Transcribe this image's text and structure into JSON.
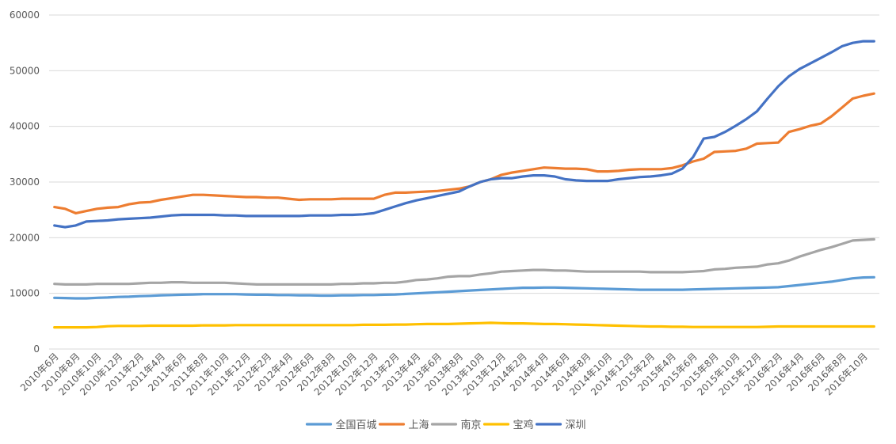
{
  "chart_data": {
    "type": "line",
    "title": "",
    "xlabel": "",
    "ylabel": "",
    "ylim": [
      0,
      60000
    ],
    "yticks": [
      0,
      10000,
      20000,
      30000,
      40000,
      50000,
      60000
    ],
    "grid": true,
    "legend_position": "bottom",
    "categories": [
      "2010年6月",
      "2010年7月",
      "2010年8月",
      "2010年9月",
      "2010年10月",
      "2010年11月",
      "2010年12月",
      "2011年1月",
      "2011年2月",
      "2011年3月",
      "2011年4月",
      "2011年5月",
      "2011年6月",
      "2011年7月",
      "2011年8月",
      "2011年9月",
      "2011年10月",
      "2011年11月",
      "2011年12月",
      "2012年1月",
      "2012年2月",
      "2012年3月",
      "2012年4月",
      "2012年5月",
      "2012年6月",
      "2012年7月",
      "2012年8月",
      "2012年9月",
      "2012年10月",
      "2012年11月",
      "2012年12月",
      "2013年1月",
      "2013年2月",
      "2013年3月",
      "2013年4月",
      "2013年5月",
      "2013年6月",
      "2013年7月",
      "2013年8月",
      "2013年9月",
      "2013年10月",
      "2013年11月",
      "2013年12月",
      "2014年1月",
      "2014年2月",
      "2014年3月",
      "2014年4月",
      "2014年5月",
      "2014年6月",
      "2014年7月",
      "2014年8月",
      "2014年9月",
      "2014年10月",
      "2014年11月",
      "2014年12月",
      "2015年1月",
      "2015年2月",
      "2015年3月",
      "2015年4月",
      "2015年5月",
      "2015年6月",
      "2015年7月",
      "2015年8月",
      "2015年9月",
      "2015年10月",
      "2015年11月",
      "2015年12月",
      "2016年1月",
      "2016年2月",
      "2016年3月",
      "2016年4月",
      "2016年5月",
      "2016年6月",
      "2016年7月",
      "2016年8月",
      "2016年9月",
      "2016年10月",
      "2016年11月"
    ],
    "tick_labels": [
      "2010年6月",
      "2010年8月",
      "2010年10月",
      "2010年12月",
      "2011年2月",
      "2011年4月",
      "2011年6月",
      "2011年8月",
      "2011年10月",
      "2011年12月",
      "2012年2月",
      "2012年4月",
      "2012年6月",
      "2012年8月",
      "2012年10月",
      "2012年12月",
      "2013年2月",
      "2013年4月",
      "2013年6月",
      "2013年8月",
      "2013年10月",
      "2013年12月",
      "2014年2月",
      "2014年4月",
      "2014年6月",
      "2014年8月",
      "2014年10月",
      "2014年12月",
      "2015年2月",
      "2015年4月",
      "2015年6月",
      "2015年8月",
      "2015年10月",
      "2015年12月",
      "2016年2月",
      "2016年4月",
      "2016年6月",
      "2016年8月",
      "2016年10月"
    ],
    "series": [
      {
        "name": "全国百城",
        "color": "#5B9BD5",
        "values": [
          9200,
          9150,
          9100,
          9100,
          9200,
          9250,
          9350,
          9400,
          9500,
          9550,
          9650,
          9700,
          9750,
          9800,
          9850,
          9850,
          9850,
          9850,
          9800,
          9750,
          9750,
          9700,
          9700,
          9650,
          9650,
          9600,
          9600,
          9650,
          9650,
          9700,
          9700,
          9750,
          9800,
          9900,
          10000,
          10100,
          10200,
          10300,
          10400,
          10500,
          10600,
          10700,
          10800,
          10900,
          11000,
          11000,
          11050,
          11050,
          11000,
          10950,
          10900,
          10850,
          10800,
          10750,
          10700,
          10650,
          10650,
          10650,
          10650,
          10650,
          10700,
          10750,
          10800,
          10850,
          10900,
          10950,
          11000,
          11050,
          11100,
          11300,
          11500,
          11700,
          11900,
          12100,
          12400,
          12700,
          12850,
          12900
        ]
      },
      {
        "name": "上海",
        "color": "#ED7D31",
        "values": [
          25500,
          25200,
          24400,
          24800,
          25200,
          25400,
          25500,
          26000,
          26300,
          26400,
          26800,
          27100,
          27400,
          27700,
          27700,
          27600,
          27500,
          27400,
          27300,
          27300,
          27200,
          27200,
          27000,
          26800,
          26900,
          26900,
          26900,
          27000,
          27000,
          27000,
          27000,
          27700,
          28100,
          28100,
          28200,
          28300,
          28400,
          28600,
          28800,
          29200,
          30000,
          30500,
          31300,
          31700,
          32000,
          32300,
          32600,
          32500,
          32400,
          32400,
          32300,
          31900,
          31900,
          32000,
          32200,
          32300,
          32300,
          32300,
          32500,
          33000,
          33700,
          34200,
          35400,
          35500,
          35600,
          36000,
          36900,
          37000,
          37100,
          39000,
          39500,
          40100,
          40500,
          41800,
          43400,
          45000,
          45500,
          45900
        ]
      },
      {
        "name": "南京",
        "color": "#A5A5A5",
        "values": [
          11700,
          11600,
          11600,
          11600,
          11700,
          11700,
          11700,
          11700,
          11800,
          11900,
          11900,
          12000,
          12000,
          11900,
          11900,
          11900,
          11900,
          11800,
          11700,
          11600,
          11600,
          11600,
          11600,
          11600,
          11600,
          11600,
          11600,
          11700,
          11700,
          11800,
          11800,
          11900,
          11900,
          12100,
          12400,
          12500,
          12700,
          13000,
          13100,
          13100,
          13400,
          13600,
          13900,
          14000,
          14100,
          14200,
          14200,
          14100,
          14100,
          14000,
          13900,
          13900,
          13900,
          13900,
          13900,
          13900,
          13800,
          13800,
          13800,
          13800,
          13900,
          14000,
          14300,
          14400,
          14600,
          14700,
          14800,
          15200,
          15400,
          15900,
          16600,
          17200,
          17800,
          18300,
          18900,
          19500,
          19600,
          19700
        ]
      },
      {
        "name": "宝鸡",
        "color": "#FFC000",
        "values": [
          3900,
          3900,
          3900,
          3900,
          3950,
          4100,
          4150,
          4150,
          4150,
          4200,
          4200,
          4200,
          4200,
          4200,
          4250,
          4250,
          4250,
          4300,
          4300,
          4300,
          4300,
          4300,
          4300,
          4300,
          4300,
          4300,
          4300,
          4300,
          4300,
          4350,
          4350,
          4350,
          4400,
          4400,
          4450,
          4500,
          4500,
          4500,
          4550,
          4600,
          4650,
          4700,
          4650,
          4600,
          4600,
          4550,
          4500,
          4500,
          4450,
          4400,
          4350,
          4300,
          4250,
          4200,
          4150,
          4100,
          4050,
          4050,
          4000,
          4000,
          3950,
          3950,
          3950,
          3950,
          3950,
          3950,
          3950,
          4000,
          4050,
          4050,
          4050,
          4050,
          4050,
          4050,
          4050,
          4050,
          4050,
          4050
        ]
      },
      {
        "name": "深圳",
        "color": "#4472C4",
        "values": [
          22200,
          21900,
          22200,
          22900,
          23000,
          23100,
          23300,
          23400,
          23500,
          23600,
          23800,
          24000,
          24100,
          24100,
          24100,
          24100,
          24000,
          24000,
          23900,
          23900,
          23900,
          23900,
          23900,
          23900,
          24000,
          24000,
          24000,
          24100,
          24100,
          24200,
          24400,
          25000,
          25600,
          26200,
          26700,
          27100,
          27500,
          27900,
          28300,
          29200,
          30000,
          30500,
          30700,
          30700,
          31000,
          31200,
          31200,
          31000,
          30500,
          30300,
          30200,
          30200,
          30200,
          30500,
          30700,
          30900,
          31000,
          31200,
          31500,
          32400,
          34500,
          37800,
          38100,
          39000,
          40100,
          41300,
          42700,
          45000,
          47200,
          49000,
          50300,
          51300,
          52300,
          53300,
          54400,
          55000,
          55300,
          55300
        ]
      }
    ]
  }
}
